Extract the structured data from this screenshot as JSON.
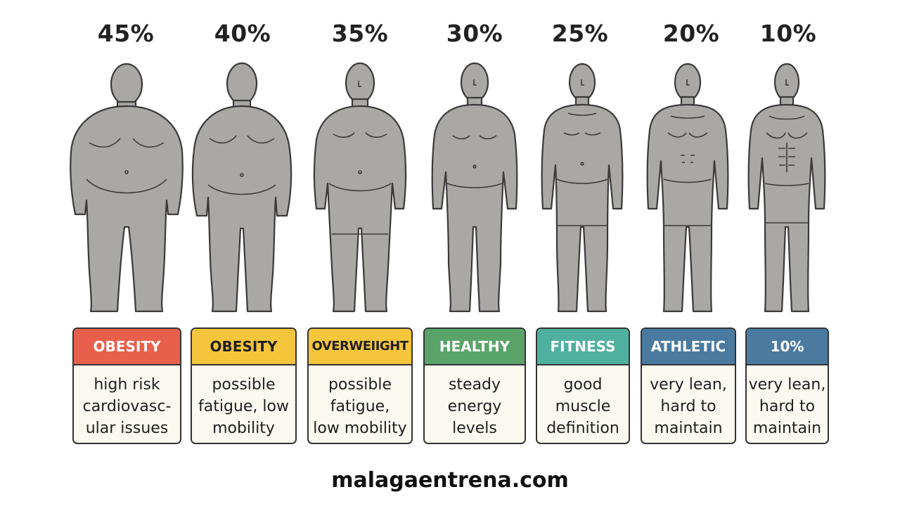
{
  "colors": {
    "body_fill": "#a9a8a5",
    "outline": "#3a3a3a",
    "card_bg": "#fbf8ef"
  },
  "columns": [
    {
      "percent": "45%",
      "category": "OBESITY",
      "header_color": "#e8604c",
      "header_text_color": "#ffffff",
      "desc": [
        "high risk",
        "cardiovasc-",
        "ular issues"
      ]
    },
    {
      "percent": "40%",
      "category": "OBESITY",
      "header_color": "#f5c63c",
      "header_text_color": "#1f1f1f",
      "desc": [
        "possible",
        "fatigue, low",
        "mobility"
      ]
    },
    {
      "percent": "35%",
      "category": "OVERWEIIGHT",
      "header_color": "#f5c63c",
      "header_text_color": "#1f1f1f",
      "desc": [
        "possible",
        "fatigue,",
        "low mobility"
      ]
    },
    {
      "percent": "30%",
      "category": "HEALTHY",
      "header_color": "#5aa46a",
      "header_text_color": "#ffffff",
      "desc": [
        "steady",
        "energy",
        "levels"
      ]
    },
    {
      "percent": "25%",
      "category": "FITNESS",
      "header_color": "#4fb0a0",
      "header_text_color": "#ffffff",
      "desc": [
        "good",
        "muscle",
        "definition"
      ]
    },
    {
      "percent": "20%",
      "category": "ATHLETIC",
      "header_color": "#4a7aa0",
      "header_text_color": "#ffffff",
      "desc": [
        "very lean,",
        "hard to",
        "maintain"
      ]
    },
    {
      "percent": "10%",
      "category": "10%",
      "header_color": "#4a7aa0",
      "header_text_color": "#ffffff",
      "desc": [
        "very lean,",
        "hard to",
        "maintain"
      ]
    }
  ],
  "footer": {
    "site": "malagaentrena.com"
  }
}
